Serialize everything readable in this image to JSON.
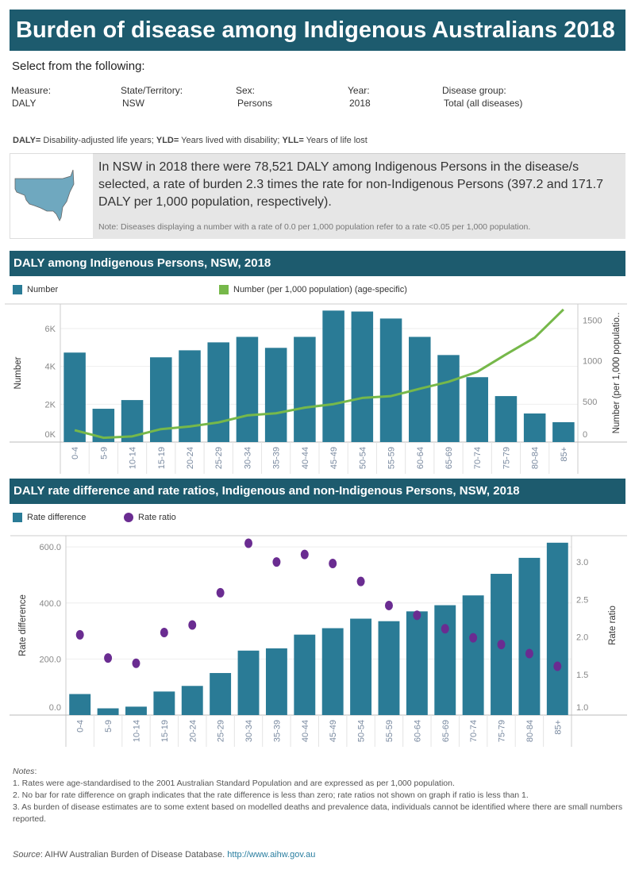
{
  "header": {
    "title": "Burden of disease among Indigenous Australians 2018"
  },
  "filters": {
    "prompt": "Select from the following:",
    "items": [
      {
        "label": "Measure:",
        "value": "DALY"
      },
      {
        "label": "State/Territory:",
        "value": "NSW"
      },
      {
        "label": "Sex:",
        "value": "Persons"
      },
      {
        "label": "Year:",
        "value": "2018"
      },
      {
        "label": "Disease group:",
        "value": "Total (all diseases)"
      }
    ]
  },
  "abbreviations": {
    "daly_key": "DALY=",
    "daly": " Disability-adjusted life years; ",
    "yld_key": "YLD=",
    "yld": " Years lived with disability; ",
    "yll_key": "YLL=",
    "yll": " Years of life lost"
  },
  "summary": {
    "text": "In NSW in 2018 there were 78,521 DALY among Indigenous Persons in the disease/s selected, a rate of burden 2.3 times the rate for non-Indigenous Persons (397.2 and 171.7 DALY per 1,000 population, respectively).",
    "note": "Note: Diseases displaying a number with a rate of 0.0 per 1,000 population refer to a rate  <0.05 per 1,000 population.",
    "map_color": "#6fa8bf"
  },
  "colors": {
    "header": "#1d5b6e",
    "bar": "#2a7b96",
    "line": "#76b84a",
    "dot": "#6a2c91"
  },
  "chart_data": [
    {
      "type": "bar",
      "title": "DALY among Indigenous Persons, NSW, 2018",
      "legend": [
        {
          "label": "Number",
          "color": "#2a7b96"
        },
        {
          "label": "Number (per 1,000 population) (age-specific)",
          "color": "#76b84a"
        }
      ],
      "ylabel": "Number",
      "y2label": "Number (per 1,000 populatio..",
      "ylim": [
        0,
        7300
      ],
      "y2lim": [
        0,
        1700
      ],
      "yticks": [
        {
          "v": 0,
          "label": "0K"
        },
        {
          "v": 2000,
          "label": "2K"
        },
        {
          "v": 4000,
          "label": "4K"
        },
        {
          "v": 6000,
          "label": "6K"
        }
      ],
      "y2ticks": [
        {
          "v": 0,
          "label": "0"
        },
        {
          "v": 500,
          "label": "500"
        },
        {
          "v": 1000,
          "label": "1000"
        },
        {
          "v": 1500,
          "label": "1500"
        }
      ],
      "categories": [
        "0-4",
        "5-9",
        "10-14",
        "15-19",
        "20-24",
        "25-29",
        "30-34",
        "35-39",
        "40-44",
        "45-49",
        "50-54",
        "55-59",
        "60-64",
        "65-69",
        "70-74",
        "75-79",
        "80-84",
        "85+"
      ],
      "series": [
        {
          "name": "Number",
          "type": "bar",
          "axis": "left",
          "values": [
            4730,
            1760,
            2220,
            4480,
            4850,
            5270,
            5560,
            4980,
            5560,
            6950,
            6900,
            6530,
            5560,
            4600,
            3430,
            2430,
            1510,
            1050
          ]
        },
        {
          "name": "Number (per 1,000 population) (age-specific)",
          "type": "line",
          "axis": "right",
          "values": [
            146,
            53,
            70,
            159,
            192,
            242,
            328,
            354,
            424,
            467,
            543,
            566,
            656,
            742,
            864,
            1079,
            1285,
            1632
          ]
        }
      ],
      "grid": true
    },
    {
      "type": "bar",
      "title": "DALY rate difference and rate ratios, Indigenous and non-Indigenous Persons, NSW, 2018",
      "legend": [
        {
          "label": "Rate difference",
          "color": "#2a7b96"
        },
        {
          "label": "Rate ratio",
          "color": "#6a2c91"
        }
      ],
      "ylabel": "Rate difference",
      "y2label": "Rate ratio",
      "ylim": [
        0,
        640
      ],
      "y2lim": [
        0.96,
        3.35
      ],
      "yticks": [
        {
          "v": 0,
          "label": "0.0"
        },
        {
          "v": 200,
          "label": "200.0"
        },
        {
          "v": 400,
          "label": "400.0"
        },
        {
          "v": 600,
          "label": "600.0"
        }
      ],
      "y2ticks": [
        {
          "v": 1.0,
          "label": "1.0"
        },
        {
          "v": 1.5,
          "label": "1.5"
        },
        {
          "v": 2.0,
          "label": "2.0"
        },
        {
          "v": 2.5,
          "label": "2.5"
        },
        {
          "v": 3.0,
          "label": "3.0"
        }
      ],
      "categories": [
        "0-4",
        "5-9",
        "10-14",
        "15-19",
        "20-24",
        "25-29",
        "30-34",
        "35-39",
        "40-44",
        "45-49",
        "50-54",
        "55-59",
        "60-64",
        "65-69",
        "70-74",
        "75-79",
        "80-84",
        "85+"
      ],
      "series": [
        {
          "name": "Rate difference",
          "type": "bar",
          "axis": "left",
          "values": [
            75,
            24,
            30,
            84,
            104,
            150,
            230,
            238,
            287,
            310,
            344,
            335,
            370,
            392,
            427,
            504,
            561,
            615
          ]
        },
        {
          "name": "Rate ratio",
          "type": "scatter",
          "axis": "right",
          "values": [
            2.03,
            1.72,
            1.65,
            2.06,
            2.16,
            2.59,
            3.25,
            3.0,
            3.1,
            2.98,
            2.74,
            2.42,
            2.29,
            2.11,
            1.99,
            1.9,
            1.78,
            1.61
          ]
        }
      ],
      "grid": true
    }
  ],
  "notes": {
    "heading": "Notes",
    "items": [
      "1. Rates were age-standardised to the 2001 Australian Standard Population and are expressed as per 1,000 population.",
      "2. No bar for rate difference on graph indicates that the rate difference is less than zero; rate ratios not shown on graph if ratio is less than 1.",
      "3. As burden of disease estimates are to some extent based on modelled deaths and prevalence data, individuals cannot be identified where there are small numbers reported."
    ]
  },
  "source": {
    "label": "Source",
    "text": " AIHW Australian Burden of Disease Database. ",
    "link": "http://www.aihw.gov.au"
  }
}
